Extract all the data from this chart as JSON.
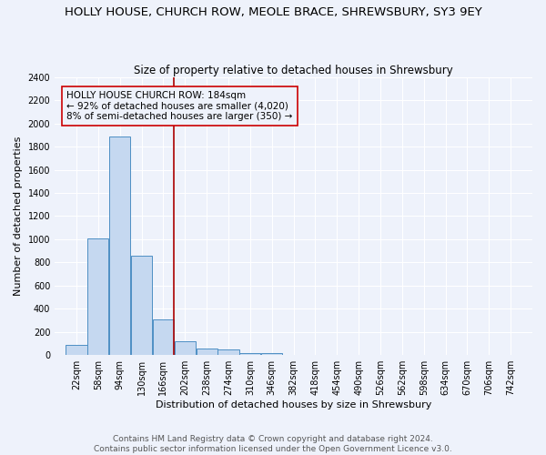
{
  "title": "HOLLY HOUSE, CHURCH ROW, MEOLE BRACE, SHREWSBURY, SY3 9EY",
  "subtitle": "Size of property relative to detached houses in Shrewsbury",
  "xlabel": "Distribution of detached houses by size in Shrewsbury",
  "ylabel": "Number of detached properties",
  "footer_line1": "Contains HM Land Registry data © Crown copyright and database right 2024.",
  "footer_line2": "Contains public sector information licensed under the Open Government Licence v3.0.",
  "bar_labels": [
    "22sqm",
    "58sqm",
    "94sqm",
    "130sqm",
    "166sqm",
    "202sqm",
    "238sqm",
    "274sqm",
    "310sqm",
    "346sqm",
    "382sqm",
    "418sqm",
    "454sqm",
    "490sqm",
    "526sqm",
    "562sqm",
    "598sqm",
    "634sqm",
    "670sqm",
    "706sqm",
    "742sqm"
  ],
  "bar_values": [
    90,
    1010,
    1890,
    860,
    310,
    120,
    55,
    45,
    20,
    15,
    0,
    0,
    0,
    0,
    0,
    0,
    0,
    0,
    0,
    0,
    0
  ],
  "bar_color": "#c5d8f0",
  "bar_edgecolor": "#4d8fc4",
  "annotation_line1": "HOLLY HOUSE CHURCH ROW: 184sqm",
  "annotation_line2": "← 92% of detached houses are smaller (4,020)",
  "annotation_line3": "8% of semi-detached houses are larger (350) →",
  "annotation_box_edgecolor": "#cc0000",
  "vline_color": "#aa0000",
  "vline_x_data": 184,
  "ylim": [
    0,
    2400
  ],
  "yticks": [
    0,
    200,
    400,
    600,
    800,
    1000,
    1200,
    1400,
    1600,
    1800,
    2000,
    2200,
    2400
  ],
  "bin_width": 36,
  "background_color": "#eef2fb",
  "grid_color": "#ffffff",
  "title_fontsize": 9.5,
  "subtitle_fontsize": 8.5,
  "axis_label_fontsize": 8,
  "tick_fontsize": 7,
  "annotation_fontsize": 7.5,
  "footer_fontsize": 6.5
}
